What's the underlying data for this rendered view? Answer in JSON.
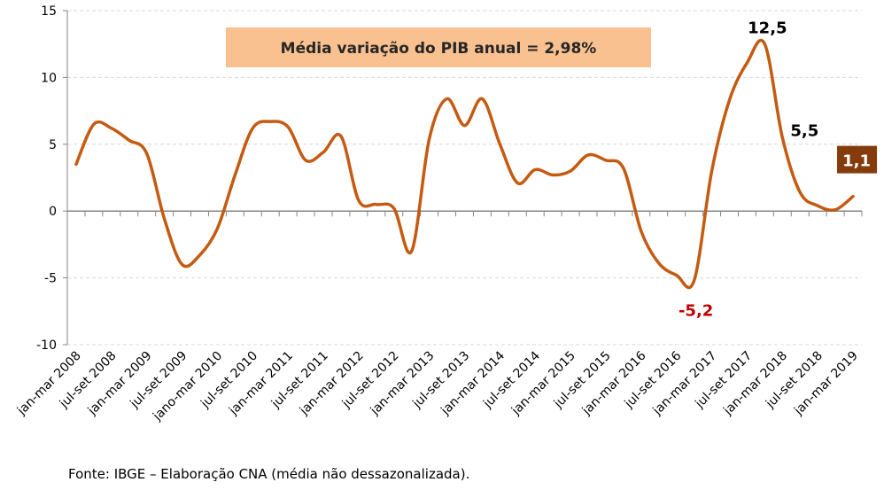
{
  "chart_data": {
    "type": "line",
    "title": "",
    "xlabel": "",
    "ylabel": "",
    "ylim": [
      -10,
      15
    ],
    "yticks": [
      15,
      10,
      5,
      0,
      -5,
      -10
    ],
    "grid": true,
    "x_tick_labels": [
      "jan-mar 2008",
      "jul-set 2008",
      "jan-mar 2009",
      "jul-set 2009",
      "jano-mar 2010",
      "jul-set 2010",
      "jan-mar 2011",
      "jul-set 2011",
      "jan-mar 2012",
      "jul-set 2012",
      "jan-mar 2013",
      "jul-set 2013",
      "jan-mar 2014",
      "jul-set 2014",
      "jan-mar 2015",
      "jul-set 2015",
      "jan-mar 2016",
      "jul-set 2016",
      "jan-mar 2017",
      "jul-set 2017",
      "jan-mar 2018",
      "jul-set 2018",
      "jan-mar 2019"
    ],
    "series": [
      {
        "color": "#c55a11",
        "values": [
          3.5,
          6.5,
          6.2,
          5.3,
          4.3,
          -0.6,
          -4.0,
          -3.3,
          -1.3,
          2.7,
          6.2,
          6.7,
          6.3,
          3.8,
          4.4,
          5.6,
          0.8,
          0.5,
          0.2,
          -3.0,
          5.4,
          8.4,
          6.4,
          8.4,
          5.0,
          2.1,
          3.1,
          2.7,
          3.0,
          4.2,
          3.8,
          3.2,
          -1.5,
          -3.9,
          -4.8,
          -5.2,
          3.0,
          8.3,
          11.1,
          12.5,
          5.5,
          1.4,
          0.4,
          0.1,
          1.1
        ]
      }
    ],
    "data_labels": [
      {
        "index": 35,
        "text": "-5,2",
        "color": "#c00000"
      },
      {
        "index": 39,
        "text": "12,5",
        "color": "#000000"
      },
      {
        "index": 40,
        "text": "5,5",
        "color": "#000000"
      },
      {
        "index": 44,
        "text": "1,1",
        "color": "#ffffff",
        "background": "#843c0c"
      }
    ],
    "annotation": {
      "text": "Média variação do PIB anual = 2,98%",
      "background": "#f9c090"
    }
  },
  "footer": "Fonte: IBGE – Elaboração CNA (média não dessazonalizada)."
}
